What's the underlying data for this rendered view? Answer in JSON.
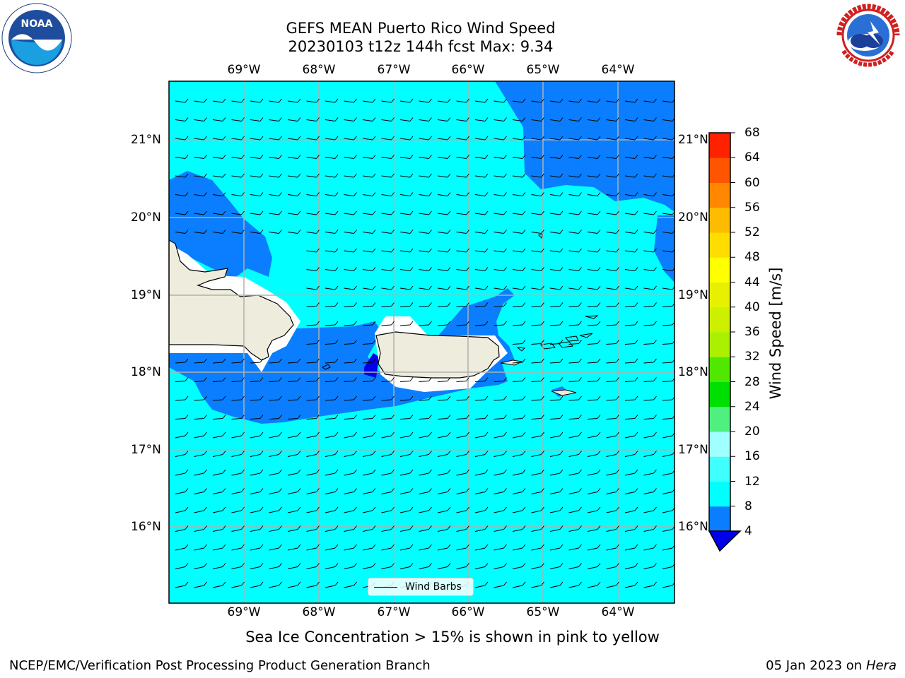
{
  "header": {
    "title_line1": "GEFS MEAN Puerto Rico Wind Speed",
    "title_line2": "20230103 t12z 144h fcst   Max: 9.34"
  },
  "logos": {
    "left": {
      "name": "NOAA",
      "text": "NOAA"
    },
    "right": {
      "name": "NATIONAL WEATHER SERVICE"
    }
  },
  "map": {
    "extent": {
      "lon_min": -70.0,
      "lon_max": -63.25,
      "lat_min": 15.0,
      "lat_max": 21.75
    },
    "longitude_ticks": [
      "69°W",
      "68°W",
      "67°W",
      "66°W",
      "65°W",
      "64°W"
    ],
    "latitude_ticks": [
      "21°N",
      "20°N",
      "19°N",
      "18°N",
      "17°N",
      "16°N"
    ],
    "colors": {
      "ocean_8_12": "#00ffff",
      "ocean_4_8": "#0a7eff",
      "ocean_lt4": "#0000e8",
      "land": "#eeecdc",
      "no_data": "#ffffff",
      "grid": "#b0b0b0"
    },
    "wind_barbs": "westward easterly trades, ~5-10 kt"
  },
  "legend": {
    "label": "Wind Barbs"
  },
  "colorbar": {
    "label": "Wind Speed [m/s]",
    "ticks": [
      "68",
      "64",
      "60",
      "56",
      "52",
      "48",
      "44",
      "40",
      "36",
      "32",
      "28",
      "24",
      "20",
      "16",
      "12",
      "8",
      "4"
    ],
    "levels": [
      4,
      8,
      12,
      16,
      20,
      24,
      28,
      32,
      36,
      40,
      44,
      48,
      52,
      56,
      60,
      64,
      68
    ],
    "colors": [
      "#0a7eff",
      "#00ffff",
      "#40ffff",
      "#a0ffff",
      "#50f080",
      "#00e000",
      "#50e800",
      "#aaf000",
      "#ccf000",
      "#e8f000",
      "#ffff00",
      "#ffdd00",
      "#ffbb00",
      "#ff8800",
      "#ff5500",
      "#ff2200"
    ],
    "under_color": "#0000e8"
  },
  "notes": {
    "ice": "Sea Ice Concentration > 15% is shown in pink to yellow",
    "footer_left": "NCEP/EMC/Verification Post Processing Product Generation Branch",
    "footer_date": "05 Jan 2023 on",
    "footer_machine": "Hera"
  }
}
